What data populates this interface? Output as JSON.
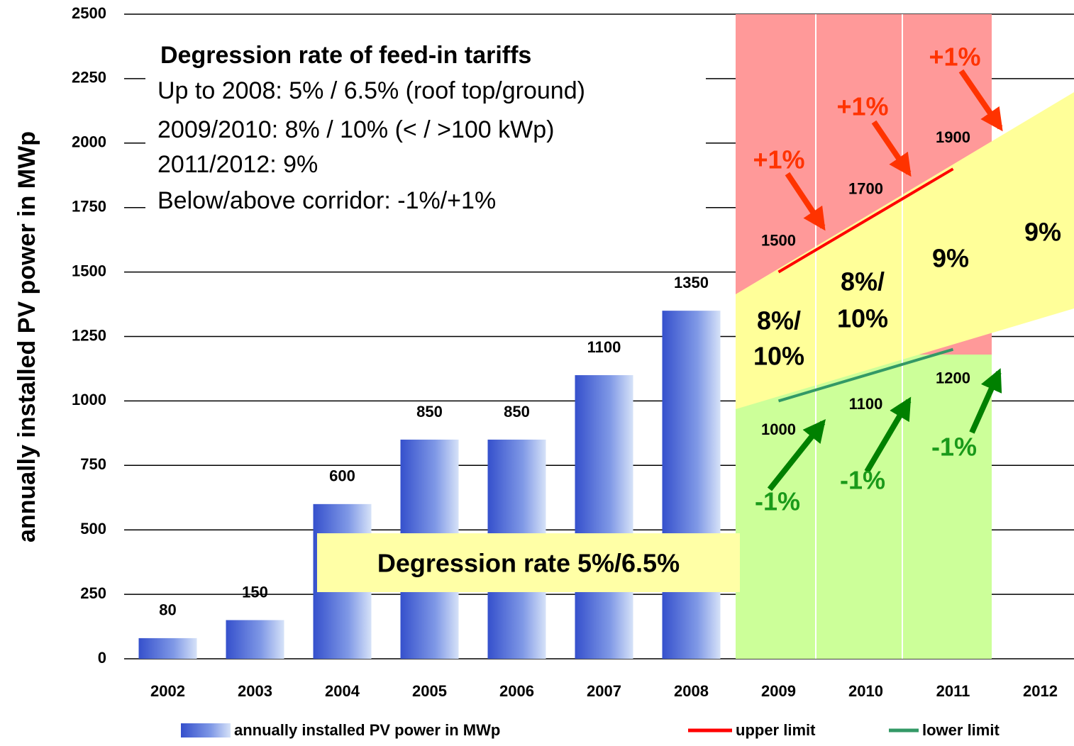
{
  "chart_data": {
    "type": "bar",
    "y_label": "annually installed PV power in MWp",
    "categories": [
      "2002",
      "2003",
      "2004",
      "2005",
      "2006",
      "2007",
      "2008",
      "2009",
      "2010",
      "2011",
      "2012"
    ],
    "series": [
      {
        "name": "annually installed PV power in MWp",
        "type": "bar",
        "color": "#4a64d8",
        "values": [
          80,
          150,
          600,
          850,
          850,
          1100,
          1350,
          null,
          null,
          null,
          null
        ]
      },
      {
        "name": "upper limit",
        "type": "line",
        "color": "#ff0000",
        "values": [
          null,
          null,
          null,
          null,
          null,
          null,
          null,
          1500,
          1700,
          1900,
          null
        ]
      },
      {
        "name": "lower limit",
        "type": "line",
        "color": "#339966",
        "values": [
          null,
          null,
          null,
          null,
          null,
          null,
          null,
          1000,
          1100,
          1200,
          null
        ]
      }
    ],
    "ylim": [
      0,
      2500
    ],
    "yticks": [
      0,
      250,
      500,
      750,
      1000,
      1250,
      1500,
      1750,
      2000,
      2250,
      2500
    ],
    "grid": true,
    "annotations": {
      "box_title": "Degression rate of feed-in tariffs",
      "box_lines": [
        "Up to 2008: 5% / 6.5% (roof top/ground)",
        "2009/2010:  8% / 10%  (< / >100 kWp)",
        "2011/2012:  9%",
        "Below/above corridor: -1%/+1%"
      ],
      "corridor_label": "Degression rate 5%/6.5%",
      "rate_labels": [
        [
          "8%/",
          "10%"
        ],
        [
          "8%/",
          "10%"
        ],
        [
          "9%"
        ],
        [
          "9%"
        ]
      ],
      "up_labels": [
        "+1%",
        "+1%",
        "+1%"
      ],
      "down_labels": [
        "-1%",
        "-1%",
        "-1%"
      ]
    }
  }
}
